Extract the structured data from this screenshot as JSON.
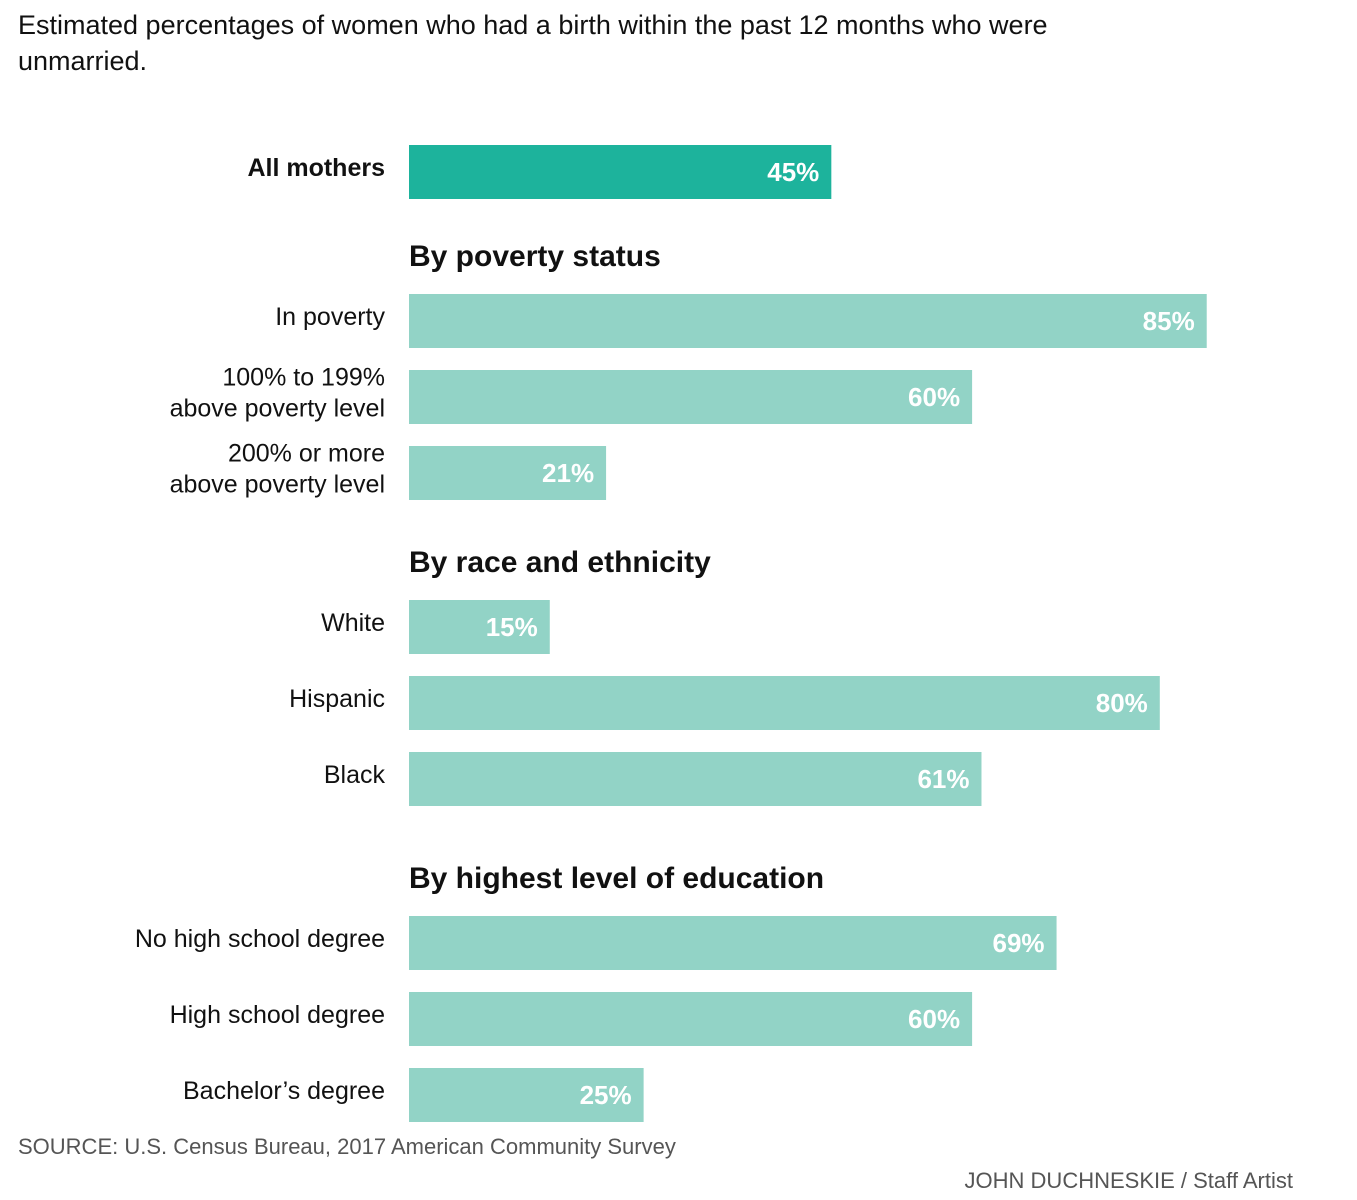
{
  "chart_data": {
    "type": "bar",
    "title": "Estimated percentages of women who had a birth within the past 12 months who were unmarried.",
    "sections": [
      {
        "categories": [
          "All mothers"
        ],
        "values": [
          45
        ],
        "value_labels": [
          "45%"
        ],
        "color": "#1db39c",
        "bold_labels": true
      },
      {
        "heading": "By poverty status",
        "categories": [
          "In poverty",
          "100% to 199%\nabove poverty level",
          "200% or more\nabove poverty level"
        ],
        "values": [
          85,
          60,
          21
        ],
        "value_labels": [
          "85%",
          "60%",
          "21%"
        ],
        "color": "#92d3c6"
      },
      {
        "heading": "By race and ethnicity",
        "categories": [
          "White",
          "Hispanic",
          "Black"
        ],
        "values": [
          15,
          80,
          61
        ],
        "value_labels": [
          "15%",
          "80%",
          "61%"
        ],
        "color": "#92d3c6"
      },
      {
        "heading": "By highest level of education",
        "categories": [
          "No high school degree",
          "High school degree",
          "Bachelor’s degree"
        ],
        "values": [
          69,
          60,
          25
        ],
        "value_labels": [
          "69%",
          "60%",
          "25%"
        ],
        "color": "#92d3c6"
      }
    ],
    "source": "SOURCE: U.S. Census Bureau, 2017 American Community Survey",
    "credit": "JOHN DUCHNESKIE / Staff Artist"
  }
}
